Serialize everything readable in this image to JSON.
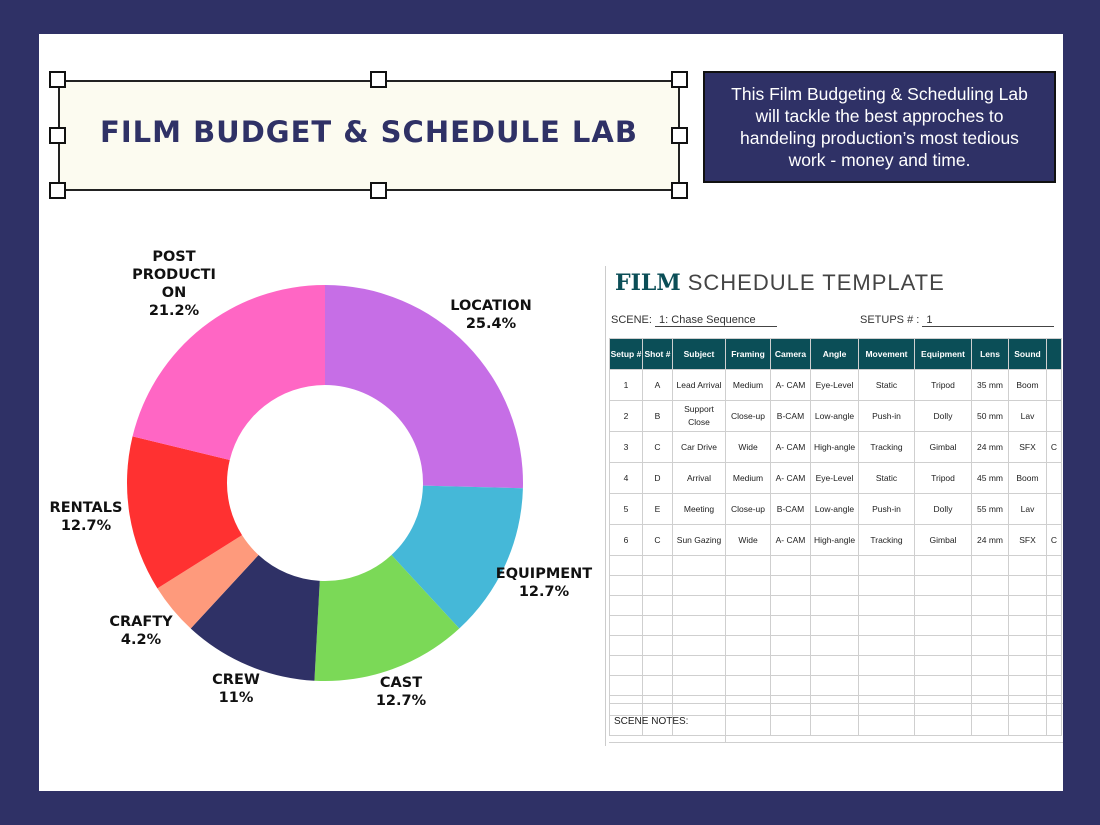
{
  "title": "FILM BUDGET & SCHEDULE LAB",
  "description": "This Film Budgeting & Scheduling Lab will tackle the best approches to handeling production’s most tedious work - money and time.",
  "colors": {
    "frame": "#2f3166",
    "schedule_header": "#0b4e57"
  },
  "chart_data": {
    "type": "pie",
    "variant": "donut",
    "title": "",
    "slices": [
      {
        "label": "LOCATION",
        "value": 25.4,
        "value_label": "25.4%",
        "color": "#c66ee6"
      },
      {
        "label": "EQUIPMENT",
        "value": 12.7,
        "value_label": "12.7%",
        "color": "#45b8d8"
      },
      {
        "label": "CAST",
        "value": 12.7,
        "value_label": "12.7%",
        "color": "#7bd957"
      },
      {
        "label": "CREW",
        "value": 11,
        "value_label": "11%",
        "color": "#2f3166"
      },
      {
        "label": "CRAFTY",
        "value": 4.2,
        "value_label": "4.2%",
        "color": "#fe9a7c"
      },
      {
        "label": "RENTALS",
        "value": 12.7,
        "value_label": "12.7%",
        "color": "#ff3131"
      },
      {
        "label": "POST PRODUCTI ON",
        "value": 21.2,
        "value_label": "21.2%",
        "color": "#ff66c4"
      }
    ]
  },
  "schedule": {
    "title_bold": "FILM",
    "title_rest": "SCHEDULE TEMPLATE",
    "scene_label": "SCENE:",
    "scene_value": "1:  Chase Sequence",
    "setups_label": "SETUPS # :",
    "setups_value": "1",
    "columns": [
      "Setup #",
      "Shot #",
      "Subject",
      "Framing",
      "Camera",
      "Angle",
      "Movement",
      "Equipment",
      "Lens",
      "Sound",
      ""
    ],
    "rows": [
      [
        "1",
        "A",
        "Lead Arrival",
        "Medium",
        "A- CAM",
        "Eye-Level",
        "Static",
        "Tripod",
        "35 mm",
        "Boom",
        ""
      ],
      [
        "2",
        "B",
        "Support Close",
        "Close-up",
        "B-CAM",
        "Low-angle",
        "Push-in",
        "Dolly",
        "50 mm",
        "Lav",
        ""
      ],
      [
        "3",
        "C",
        "Car Drive",
        "Wide",
        "A- CAM",
        "High-angle",
        "Tracking",
        "Gimbal",
        "24 mm",
        "SFX",
        "C"
      ],
      [
        "4",
        "D",
        "Arrival",
        "Medium",
        "A- CAM",
        "Eye-Level",
        "Static",
        "Tripod",
        "45 mm",
        "Boom",
        ""
      ],
      [
        "5",
        "E",
        "Meeting",
        "Close-up",
        "B-CAM",
        "Low-angle",
        "Push-in",
        "Dolly",
        "55 mm",
        "Lav",
        ""
      ],
      [
        "6",
        "C",
        "Sun Gazing",
        "Wide",
        "A- CAM",
        "High-angle",
        "Tracking",
        "Gimbal",
        "24 mm",
        "SFX",
        "C"
      ]
    ],
    "notes_label": "SCENE NOTES:"
  }
}
